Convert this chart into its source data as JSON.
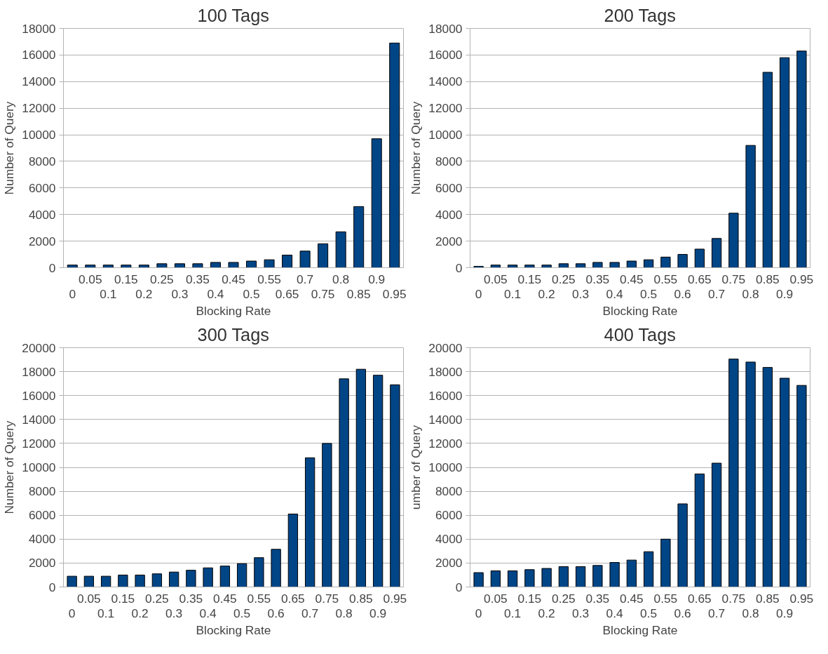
{
  "chart_data": [
    {
      "type": "bar",
      "title": "100 Tags",
      "xlabel": "Blocking Rate",
      "ylabel": "Number of Query",
      "categories": [
        "0",
        "0.05",
        "0.1",
        "0.15",
        "0.2",
        "0.25",
        "0.3",
        "0.35",
        "0.4",
        "0.45",
        "0.5",
        "0.55",
        "0.65",
        "0.7",
        "0.75",
        "0.8",
        "0.85",
        "0.9",
        "0.95"
      ],
      "values": [
        200,
        200,
        200,
        200,
        200,
        300,
        300,
        300,
        400,
        400,
        500,
        600,
        950,
        1250,
        1800,
        2700,
        4600,
        9700,
        16900
      ],
      "color": "#004586",
      "ylim": [
        0,
        18000
      ],
      "yticks": [
        0,
        2000,
        4000,
        6000,
        8000,
        10000,
        12000,
        14000,
        16000,
        18000
      ],
      "grid": "y"
    },
    {
      "type": "bar",
      "title": "200 Tags",
      "xlabel": "Blocking Rate",
      "ylabel": "Number of Query",
      "categories": [
        "0",
        "0.05",
        "0.1",
        "0.15",
        "0.2",
        "0.25",
        "0.3",
        "0.35",
        "0.4",
        "0.45",
        "0.5",
        "0.55",
        "0.6",
        "0.65",
        "0.7",
        "0.75",
        "0.8",
        "0.85",
        "0.9",
        "0.95"
      ],
      "values": [
        100,
        200,
        200,
        200,
        200,
        300,
        300,
        400,
        400,
        500,
        600,
        800,
        1000,
        1400,
        2200,
        4100,
        9200,
        14700,
        15800,
        16300
      ],
      "color": "#004586",
      "ylim": [
        0,
        18000
      ],
      "yticks": [
        0,
        2000,
        4000,
        6000,
        8000,
        10000,
        12000,
        14000,
        16000,
        18000
      ],
      "grid": "y"
    },
    {
      "type": "bar",
      "title": "300 Tags",
      "xlabel": "Blocking Rate",
      "ylabel": "Number of Query",
      "categories": [
        "0",
        "0.05",
        "0.1",
        "0.15",
        "0.2",
        "0.25",
        "0.3",
        "0.35",
        "0.4",
        "0.45",
        "0.5",
        "0.55",
        "0.6",
        "0.65",
        "0.7",
        "0.75",
        "0.8",
        "0.85",
        "0.9",
        "0.95"
      ],
      "values": [
        900,
        900,
        900,
        1000,
        1000,
        1100,
        1250,
        1400,
        1600,
        1750,
        1950,
        2450,
        3150,
        6100,
        10800,
        12000,
        17400,
        18200,
        17700,
        16900
      ],
      "color": "#004586",
      "ylim": [
        0,
        20000
      ],
      "yticks": [
        0,
        2000,
        4000,
        6000,
        8000,
        10000,
        12000,
        14000,
        16000,
        18000,
        20000
      ],
      "grid": "y"
    },
    {
      "type": "bar",
      "title": "400 Tags",
      "xlabel": "Blocking Rate",
      "ylabel": "umber of Query",
      "categories": [
        "0",
        "0.05",
        "0.1",
        "0.15",
        "0.2",
        "0.25",
        "0.3",
        "0.35",
        "0.4",
        "0.45",
        "0.5",
        "0.55",
        "0.6",
        "0.65",
        "0.7",
        "0.75",
        "0.8",
        "0.85",
        "0.9",
        "0.95"
      ],
      "values": [
        1200,
        1350,
        1350,
        1450,
        1550,
        1700,
        1700,
        1800,
        2050,
        2250,
        2950,
        4000,
        6950,
        9450,
        10350,
        19050,
        18800,
        18350,
        17450,
        16850
      ],
      "color": "#004586",
      "ylim": [
        0,
        20000
      ],
      "yticks": [
        0,
        2000,
        4000,
        6000,
        8000,
        10000,
        12000,
        14000,
        16000,
        18000,
        20000
      ],
      "grid": "y"
    }
  ]
}
